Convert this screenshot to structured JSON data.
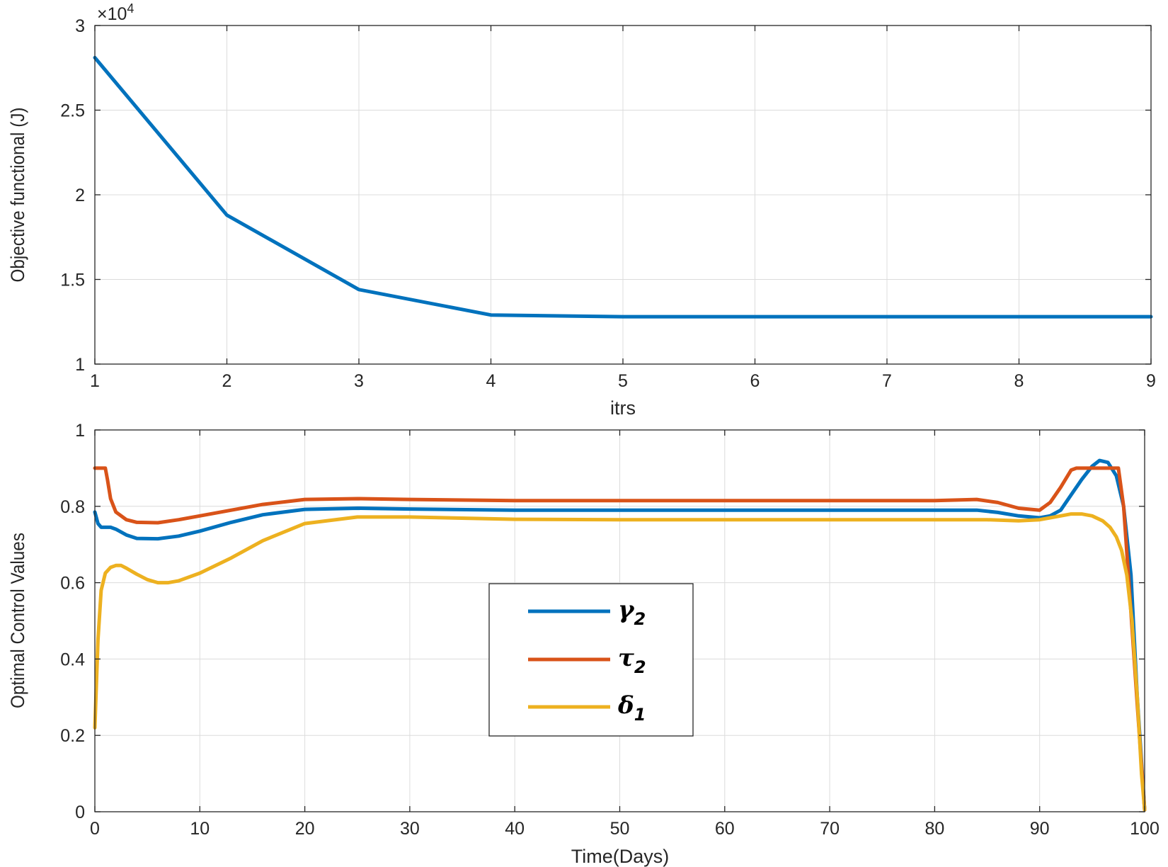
{
  "chart_data": [
    {
      "type": "line",
      "xlabel": "itrs",
      "ylabel": "Objective functional (J)",
      "exponent_label": "×10",
      "exponent_power": "4",
      "xlim": [
        1,
        9
      ],
      "ylim": [
        1,
        3
      ],
      "xticks": [
        "1",
        "2",
        "3",
        "4",
        "5",
        "6",
        "7",
        "8",
        "9"
      ],
      "yticks": [
        "1",
        "1.5",
        "2",
        "2.5",
        "3"
      ],
      "grid": true,
      "series": [
        {
          "color": "#0072BD",
          "x": [
            1,
            2,
            3,
            4,
            5,
            6,
            7,
            8,
            9
          ],
          "y": [
            2.81,
            1.88,
            1.44,
            1.29,
            1.28,
            1.28,
            1.28,
            1.28,
            1.28
          ]
        }
      ]
    },
    {
      "type": "line",
      "xlabel": "Time(Days)",
      "ylabel": "Optimal Control Values",
      "xlim": [
        0,
        100
      ],
      "ylim": [
        0,
        1
      ],
      "xticks": [
        "0",
        "10",
        "20",
        "30",
        "40",
        "50",
        "60",
        "70",
        "80",
        "90",
        "100"
      ],
      "yticks": [
        "0",
        "0.2",
        "0.4",
        "0.6",
        "0.8",
        "1"
      ],
      "grid": true,
      "legend_position": "center",
      "series": [
        {
          "name": "γ",
          "sub": "2",
          "color": "#0072BD",
          "x": [
            0,
            0.3,
            0.6,
            1,
            1.5,
            2,
            3,
            4,
            6,
            8,
            10,
            13,
            16,
            20,
            25,
            30,
            40,
            50,
            60,
            70,
            80,
            84,
            86,
            88,
            90,
            91,
            92,
            93,
            94,
            95,
            95.7,
            96.5,
            97.3,
            98,
            98.7,
            99.3,
            100
          ],
          "y": [
            0.785,
            0.755,
            0.745,
            0.745,
            0.745,
            0.74,
            0.725,
            0.716,
            0.715,
            0.722,
            0.735,
            0.758,
            0.778,
            0.792,
            0.795,
            0.793,
            0.79,
            0.79,
            0.79,
            0.79,
            0.79,
            0.79,
            0.784,
            0.775,
            0.77,
            0.775,
            0.79,
            0.83,
            0.87,
            0.905,
            0.92,
            0.915,
            0.88,
            0.8,
            0.62,
            0.3,
            0.005
          ]
        },
        {
          "name": "τ",
          "sub": "2",
          "color": "#D95319",
          "x": [
            0,
            0.5,
            1,
            1.2,
            1.5,
            2,
            3,
            4,
            6,
            8,
            10,
            13,
            16,
            20,
            25,
            30,
            40,
            50,
            60,
            70,
            80,
            84,
            86,
            88,
            90,
            91,
            92,
            93,
            93.5,
            97.5,
            98,
            98.5,
            99,
            99.5,
            100
          ],
          "y": [
            0.9,
            0.9,
            0.9,
            0.87,
            0.82,
            0.785,
            0.765,
            0.758,
            0.757,
            0.765,
            0.775,
            0.79,
            0.805,
            0.818,
            0.82,
            0.818,
            0.815,
            0.815,
            0.815,
            0.815,
            0.815,
            0.818,
            0.81,
            0.795,
            0.79,
            0.81,
            0.85,
            0.895,
            0.9,
            0.9,
            0.8,
            0.6,
            0.4,
            0.2,
            0.005
          ]
        },
        {
          "name": "δ",
          "sub": "1",
          "color": "#EDB120",
          "x": [
            0,
            0.3,
            0.6,
            1,
            1.5,
            2,
            2.5,
            3,
            4,
            5,
            6,
            7,
            8,
            10,
            13,
            16,
            20,
            25,
            30,
            40,
            50,
            60,
            70,
            80,
            85,
            88,
            90,
            91,
            92,
            93,
            94,
            95,
            96,
            96.7,
            97.3,
            97.8,
            98.3,
            98.8,
            99.3,
            99.7,
            100
          ],
          "y": [
            0.22,
            0.45,
            0.58,
            0.625,
            0.64,
            0.645,
            0.645,
            0.638,
            0.622,
            0.608,
            0.6,
            0.6,
            0.605,
            0.625,
            0.665,
            0.71,
            0.755,
            0.772,
            0.772,
            0.766,
            0.765,
            0.765,
            0.765,
            0.765,
            0.765,
            0.762,
            0.765,
            0.77,
            0.775,
            0.78,
            0.78,
            0.775,
            0.762,
            0.745,
            0.72,
            0.685,
            0.62,
            0.5,
            0.3,
            0.1,
            0.005
          ]
        }
      ]
    }
  ]
}
